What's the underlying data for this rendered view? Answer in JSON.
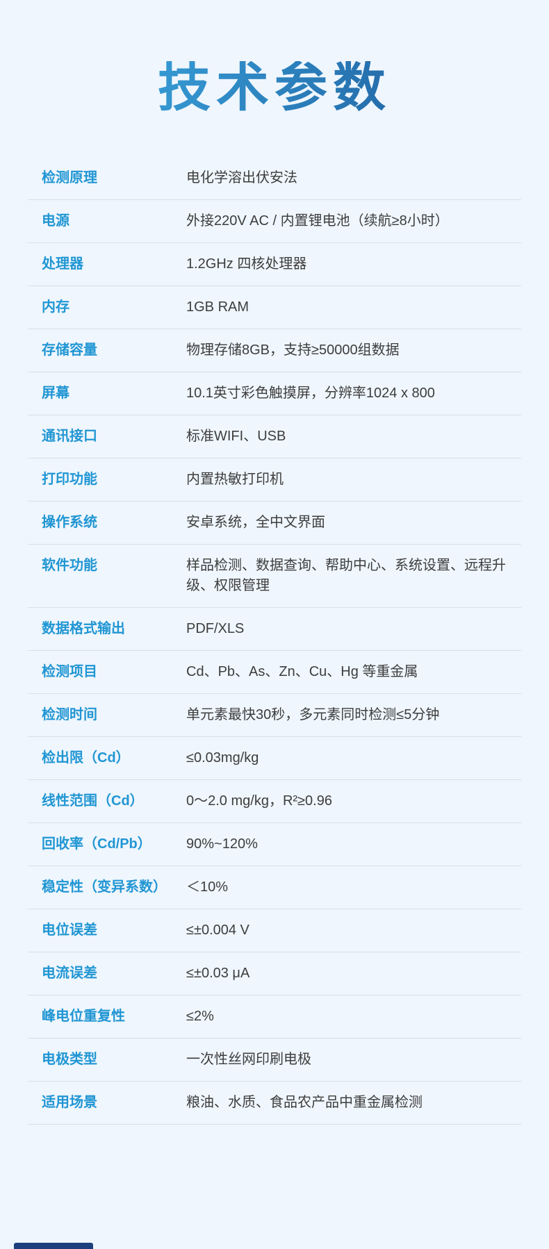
{
  "page": {
    "title": "技术参数",
    "colors": {
      "background": "#EFF6FD",
      "label": "#2196D3",
      "value": "#3D3D3D",
      "divider": "#D9DFE7",
      "title_gradient_start": "#3BA9E1",
      "title_gradient_end": "#1E5C9C",
      "footer_bar": "#1D3F7B"
    }
  },
  "specs": {
    "rows": [
      {
        "label": "检测原理",
        "value": "电化学溶出伏安法"
      },
      {
        "label": "电源",
        "value": "外接220V AC / 内置锂电池（续航≥8小时）"
      },
      {
        "label": "处理器",
        "value": "1.2GHz 四核处理器"
      },
      {
        "label": "内存",
        "value": "1GB RAM"
      },
      {
        "label": "存储容量",
        "value": "物理存储8GB，支持≥50000组数据"
      },
      {
        "label": "屏幕",
        "value": "10.1英寸彩色触摸屏，分辨率1024 x 800"
      },
      {
        "label": "通讯接口",
        "value": "标准WIFI、USB"
      },
      {
        "label": "打印功能",
        "value": "内置热敏打印机"
      },
      {
        "label": "操作系统",
        "value": "安卓系统，全中文界面"
      },
      {
        "label": "软件功能",
        "value": "样品检测、数据查询、帮助中心、系统设置、远程升级、权限管理"
      },
      {
        "label": "数据格式输出",
        "value": "PDF/XLS"
      },
      {
        "label": "检测项目",
        "value": "Cd、Pb、As、Zn、Cu、Hg 等重金属"
      },
      {
        "label": "检测时间",
        "value": "单元素最快30秒，多元素同时检测≤5分钟"
      },
      {
        "label": "检出限（Cd）",
        "value": "≤0.03mg/kg"
      },
      {
        "label": "线性范围（Cd）",
        "value": "0～2.0 mg/kg，R²≥0.96"
      },
      {
        "label": "回收率（Cd/Pb）",
        "value": "90%~120%"
      },
      {
        "label": "稳定性（变异系数）",
        "value": "＜10%"
      },
      {
        "label": "电位误差",
        "value": "≤±0.004 V"
      },
      {
        "label": "电流误差",
        "value": "≤±0.03 μA"
      },
      {
        "label": "峰电位重复性",
        "value": "≤2%"
      },
      {
        "label": "电极类型",
        "value": "一次性丝网印刷电极"
      },
      {
        "label": "适用场景",
        "value": "粮油、水质、食品农产品中重金属检测"
      }
    ]
  }
}
